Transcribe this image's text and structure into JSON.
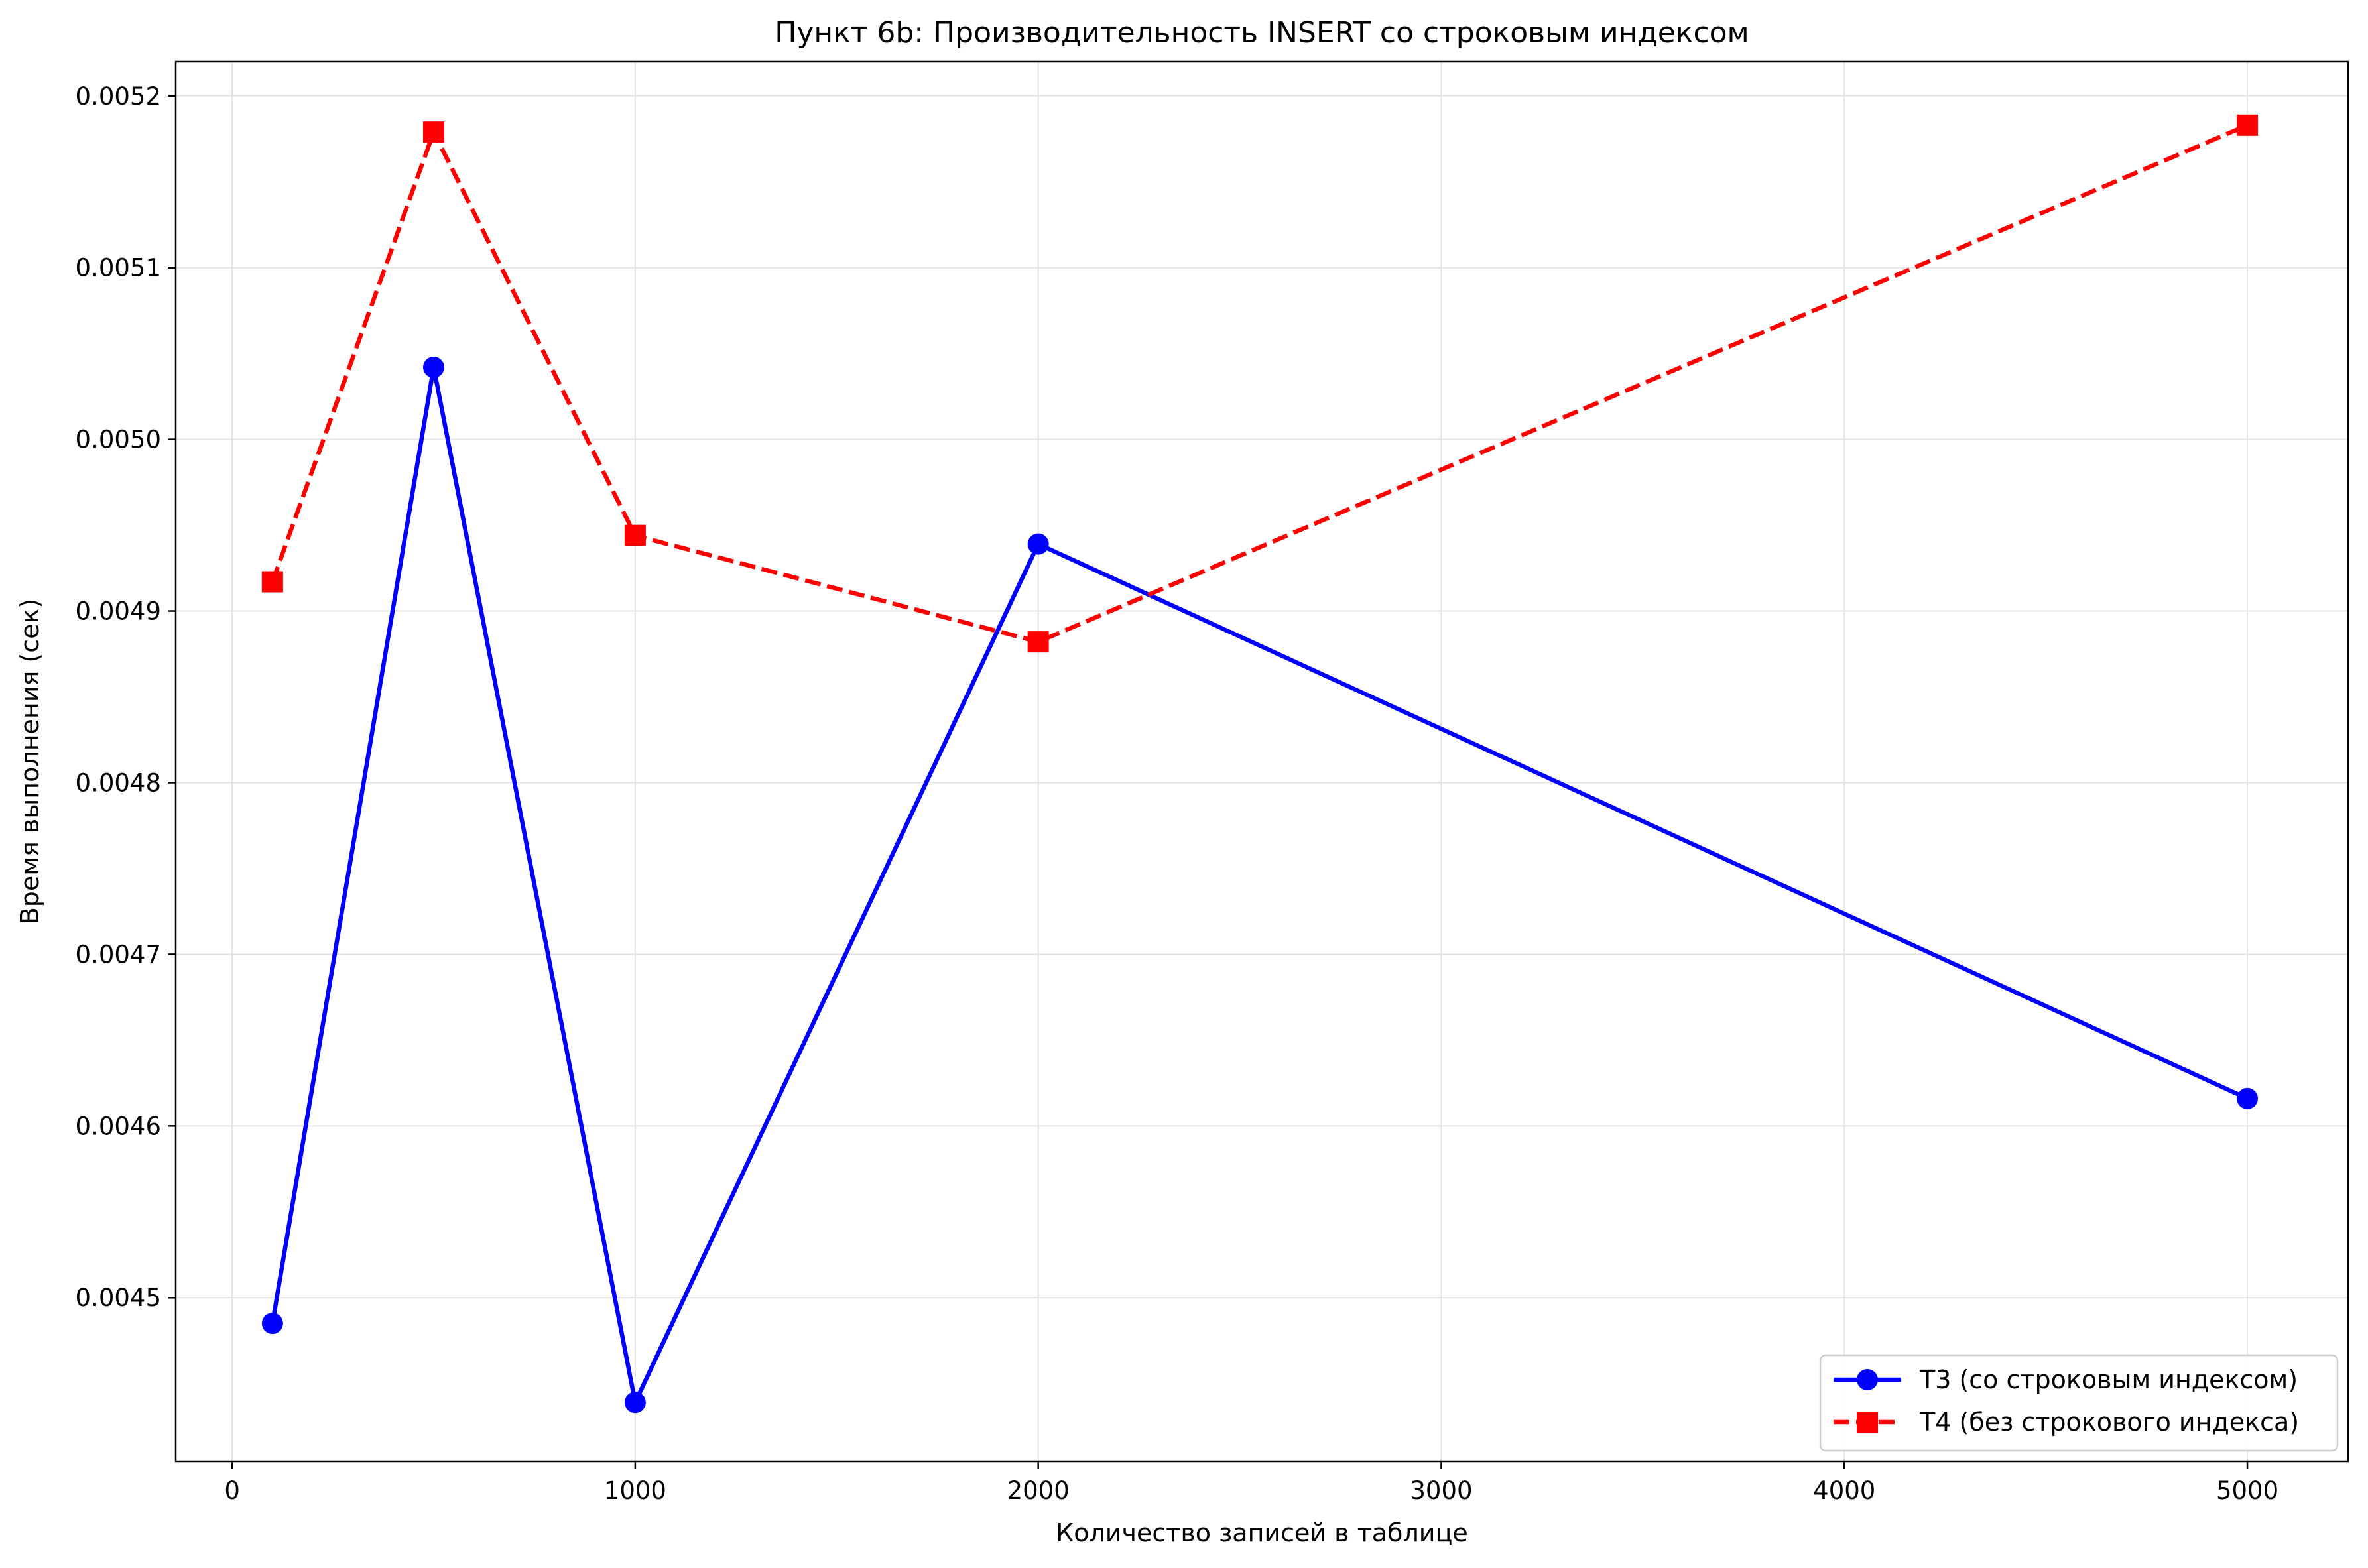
{
  "chart_data": {
    "type": "line",
    "title": "Пункт 6b: Производительность INSERT со строковым индексом",
    "xlabel": "Количество записей в таблице",
    "ylabel": "Время выполнения (сек)",
    "xlim": [
      -140,
      5250
    ],
    "ylim": [
      0.0044047,
      0.00522
    ],
    "xticks": [
      0,
      1000,
      2000,
      3000,
      4000,
      5000
    ],
    "xtick_labels": [
      "0",
      "1000",
      "2000",
      "3000",
      "4000",
      "5000"
    ],
    "yticks": [
      0.0045,
      0.0046,
      0.0047,
      0.0048,
      0.0049,
      0.005,
      0.0051,
      0.0052
    ],
    "ytick_labels": [
      "0.0045",
      "0.0046",
      "0.0047",
      "0.0048",
      "0.0049",
      "0.0050",
      "0.0051",
      "0.0052"
    ],
    "grid": true,
    "legend_position": "bottom-right",
    "series": [
      {
        "name": "T3 (со строковым индексом)",
        "color": "#0000ff",
        "line_style": "solid",
        "marker": "circle",
        "x": [
          100,
          500,
          1000,
          2000,
          5000
        ],
        "y": [
          0.004485,
          0.005042,
          0.004439,
          0.004939,
          0.004616
        ]
      },
      {
        "name": "T4 (без строкового индекса)",
        "color": "#ff0000",
        "line_style": "dashed",
        "marker": "square",
        "x": [
          100,
          500,
          1000,
          2000,
          5000
        ],
        "y": [
          0.004917,
          0.005179,
          0.004944,
          0.004882,
          0.005183
        ]
      }
    ]
  }
}
